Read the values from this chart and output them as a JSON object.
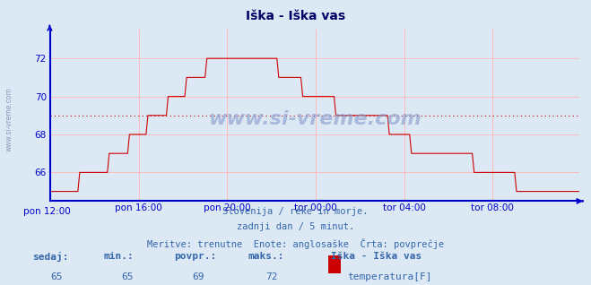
{
  "title": "Iška - Iška vas",
  "bg_color": "#dce9f5",
  "plot_bg_color": "#dce9f5",
  "line_color": "#cc0000",
  "grid_color": "#ffbbbb",
  "axis_color": "#0000cc",
  "text_color": "#3366aa",
  "average_line_color": "#cc0000",
  "average_value": 69.0,
  "ylim": [
    64.5,
    73.5
  ],
  "yticks": [
    66,
    68,
    70,
    72
  ],
  "xlabel_times": [
    "pon 12:00",
    "pon 16:00",
    "pon 20:00",
    "tor 00:00",
    "tor 04:00",
    "tor 08:00"
  ],
  "subtitle_lines": [
    "Slovenija / reke in morje.",
    "zadnji dan / 5 minut.",
    "Meritve: trenutne  Enote: anglosaške  Črta: povprečje"
  ],
  "footer_labels": [
    "sedaj:",
    "min.:",
    "povpr.:",
    "maks.:"
  ],
  "footer_values": [
    "65",
    "65",
    "69",
    "72"
  ],
  "legend_name": "Iška - Iška vas",
  "legend_label": "temperatura[F]",
  "legend_color": "#cc0000",
  "watermark_text": "www.si-vreme.com",
  "left_watermark": "www.si-vreme.com",
  "n_points": 288
}
